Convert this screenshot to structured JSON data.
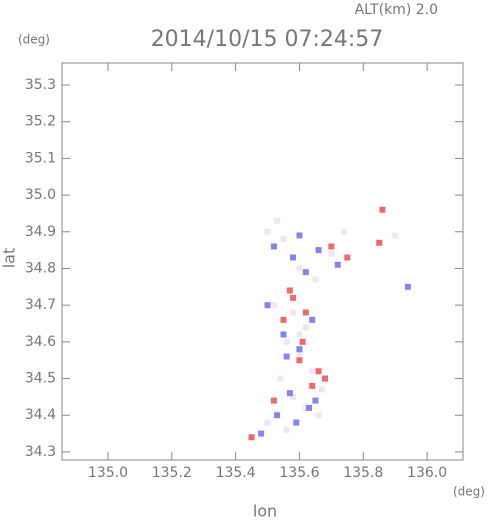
{
  "chart_data": {
    "type": "scatter",
    "title": "2014/10/15 07:24:57",
    "subtitle": "ALT(km) 2.0",
    "x_label": "lon",
    "y_label": "lat",
    "x_unit": "(deg)",
    "y_unit": "(deg)",
    "xlim": [
      134.856,
      136.1125
    ],
    "ylim": [
      34.278,
      35.36
    ],
    "xticks": [
      {
        "value": 135.0,
        "label": "135.0"
      },
      135.2,
      135.4,
      135.6,
      135.8,
      {
        "value": 136.0,
        "label": "136.0"
      }
    ],
    "yticks": [
      34.3,
      34.4,
      34.5,
      34.6,
      34.7,
      34.8,
      34.9,
      {
        "value": 35.0,
        "label": "35.0"
      },
      35.1,
      35.2,
      35.3
    ],
    "series": [
      {
        "color": "#f1e6f0",
        "x": [
          135.5,
          135.55,
          135.6,
          135.65,
          135.52,
          135.58,
          135.62,
          135.56,
          135.6,
          135.64,
          135.54,
          135.58,
          135.62,
          135.66,
          135.5,
          135.56,
          135.7,
          135.74,
          135.9,
          135.53,
          135.6,
          135.67
        ],
        "values": [
          34.9,
          34.88,
          34.8,
          34.77,
          34.7,
          34.68,
          34.64,
          34.6,
          34.57,
          34.52,
          34.5,
          34.45,
          34.42,
          34.4,
          34.38,
          34.36,
          34.84,
          34.9,
          34.89,
          34.93,
          34.62,
          34.47
        ]
      },
      {
        "color": "#8484f0",
        "x": [
          135.52,
          135.58,
          135.62,
          135.66,
          135.55,
          135.6,
          135.64,
          135.5,
          135.57,
          135.63,
          135.53,
          135.59,
          135.68,
          135.72,
          135.94,
          135.6,
          135.56,
          135.65,
          135.48
        ],
        "values": [
          34.86,
          34.83,
          34.79,
          34.85,
          34.62,
          34.58,
          34.66,
          34.7,
          34.46,
          34.42,
          34.4,
          34.38,
          34.5,
          34.81,
          34.75,
          34.89,
          34.56,
          34.44,
          34.35
        ]
      },
      {
        "color": "#f06868",
        "x": [
          135.45,
          135.58,
          135.62,
          135.66,
          135.85,
          135.7,
          135.55,
          135.61,
          135.64,
          135.68,
          135.52,
          135.57,
          135.86,
          135.75,
          135.6
        ],
        "values": [
          34.34,
          34.72,
          34.68,
          34.52,
          34.87,
          34.86,
          34.66,
          34.6,
          34.48,
          34.5,
          34.44,
          34.74,
          34.96,
          34.83,
          34.55
        ]
      }
    ]
  }
}
